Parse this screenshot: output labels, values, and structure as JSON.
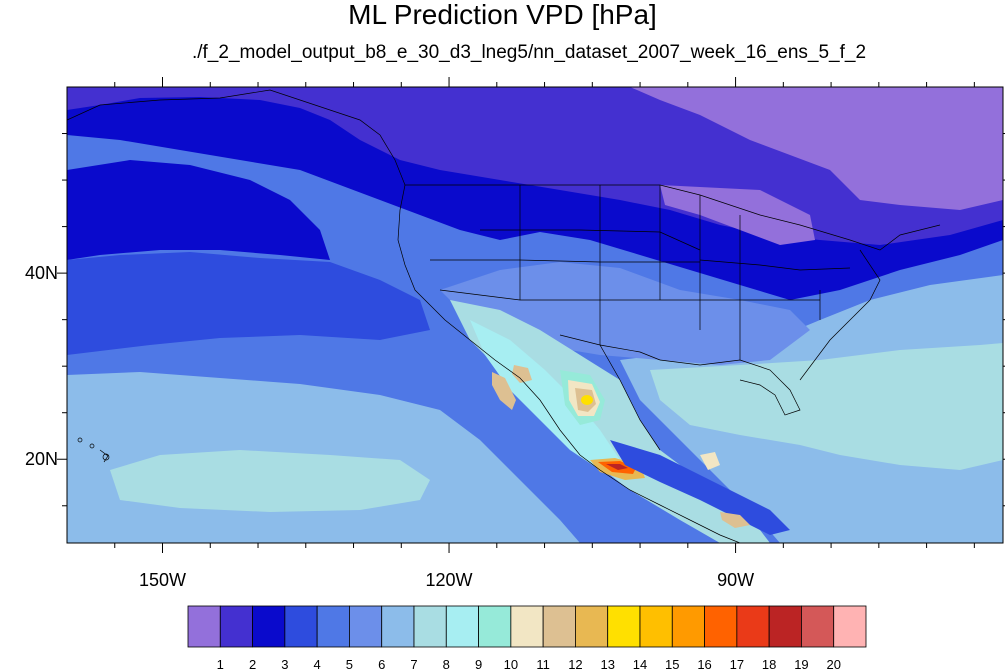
{
  "title": "ML Prediction VPD [hPa]",
  "subtitle": "./f_2_model_output_b8_e_30_d3_lneg5/nn_dataset_2007_week_16_ens_5_f_2",
  "map": {
    "lon_range": [
      -160,
      -62
    ],
    "lat_range": [
      11,
      60
    ],
    "lon_ticks": [
      {
        "value": -150,
        "label": "150W"
      },
      {
        "value": -120,
        "label": "120W"
      },
      {
        "value": -90,
        "label": "90W"
      }
    ],
    "lat_ticks": [
      {
        "value": 40,
        "label": "40N"
      },
      {
        "value": 20,
        "label": "20N"
      }
    ]
  },
  "colorbar": {
    "labels": [
      "1",
      "2",
      "3",
      "4",
      "5",
      "6",
      "7",
      "8",
      "9",
      "10",
      "11",
      "12",
      "13",
      "14",
      "15",
      "16",
      "17",
      "18",
      "19",
      "20"
    ],
    "colors": [
      "#9370DB",
      "#4430D0",
      "#0A0ACC",
      "#2E4CDE",
      "#4F78E6",
      "#6C8FEA",
      "#8CBCEA",
      "#A9DDE3",
      "#A7EEF2",
      "#96EAD9",
      "#F2E6C4",
      "#DDC092",
      "#E8B852",
      "#FFE000",
      "#FFBF00",
      "#FF9A00",
      "#FF6200",
      "#EA3A18",
      "#BB2424",
      "#D45858",
      "#FFB3B3"
    ]
  }
}
